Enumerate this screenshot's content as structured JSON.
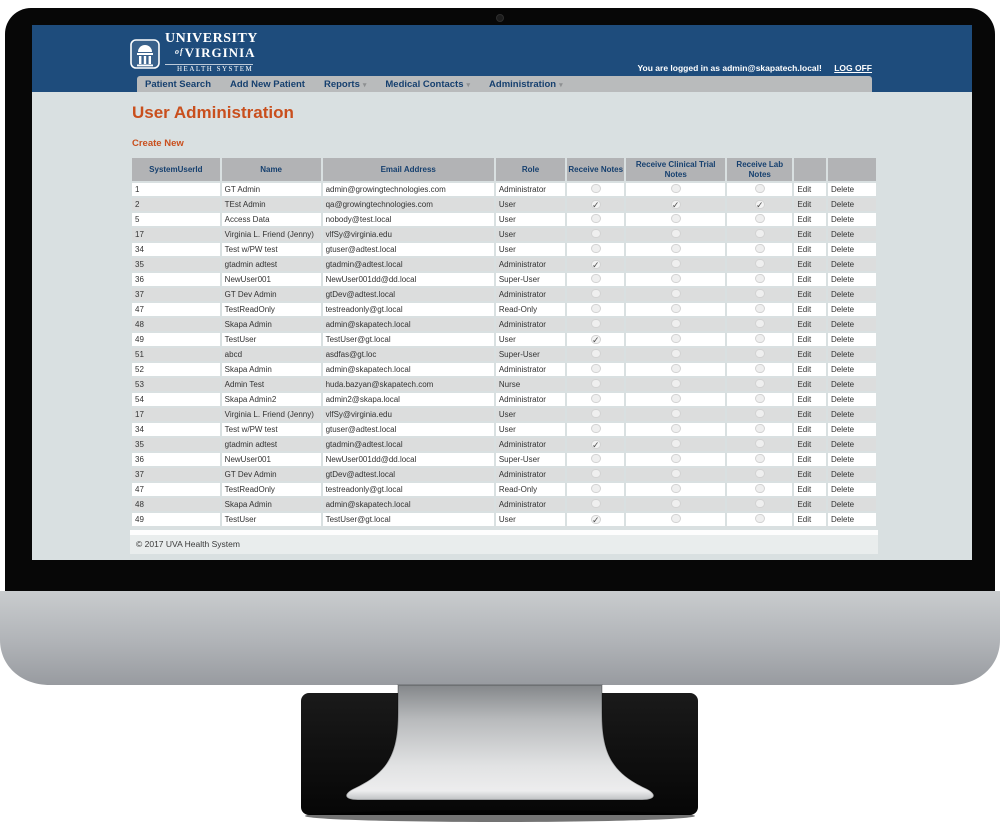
{
  "page": {
    "title": "User Administration",
    "create_new": "Create New",
    "copyright": "© 2017 UVA Health System"
  },
  "header": {
    "logo": {
      "line1": "University",
      "line2_of": "of",
      "line2": "Virginia",
      "line3": "Health System"
    },
    "login_text": "You are logged in as admin@skapatech.local!",
    "log_off": "LOG OFF",
    "nav": [
      {
        "label": "Patient Search",
        "has_dropdown": false
      },
      {
        "label": "Add New Patient",
        "has_dropdown": false
      },
      {
        "label": "Reports",
        "has_dropdown": true
      },
      {
        "label": "Medical Contacts",
        "has_dropdown": true
      },
      {
        "label": "Administration",
        "has_dropdown": true
      }
    ]
  },
  "colors": {
    "header_blue": "#1e4c7c",
    "accent_orange": "#c94f1d",
    "nav_gray": "#b9bbbc",
    "table_header_gray": "#b2b3b5"
  },
  "icons": {
    "logo_icon": "rotunda-building-icon",
    "nav_caret": "chevron-down-icon"
  },
  "table": {
    "headers": [
      "SystemUserId",
      "Name",
      "Email Address",
      "Role",
      "Receive Notes",
      "Receive Clinical Trial Notes",
      "Receive Lab Notes",
      "",
      ""
    ],
    "edit_label": "Edit",
    "delete_label": "Delete",
    "rows": [
      {
        "id": "1",
        "name": "GT Admin",
        "email": "admin@growingtechnologies.com",
        "role": "Administrator",
        "notes": false,
        "trial": false,
        "lab": false
      },
      {
        "id": "2",
        "name": "TEst Admin",
        "email": "qa@growingtechnologies.com",
        "role": "User",
        "notes": true,
        "trial": true,
        "lab": true
      },
      {
        "id": "5",
        "name": "Access Data",
        "email": "nobody@test.local",
        "role": "User",
        "notes": false,
        "trial": false,
        "lab": false
      },
      {
        "id": "17",
        "name": "Virginia L. Friend (Jenny)",
        "email": "vlfSy@virginia.edu",
        "role": "User",
        "notes": false,
        "trial": false,
        "lab": false
      },
      {
        "id": "34",
        "name": "Test w/PW test",
        "email": "gtuser@adtest.local",
        "role": "User",
        "notes": false,
        "trial": false,
        "lab": false
      },
      {
        "id": "35",
        "name": "gtadmin adtest",
        "email": "gtadmin@adtest.local",
        "role": "Administrator",
        "notes": true,
        "trial": false,
        "lab": false
      },
      {
        "id": "36",
        "name": "NewUser001",
        "email": "NewUser001dd@dd.local",
        "role": "Super-User",
        "notes": false,
        "trial": false,
        "lab": false
      },
      {
        "id": "37",
        "name": "GT Dev Admin",
        "email": "gtDev@adtest.local",
        "role": "Administrator",
        "notes": false,
        "trial": false,
        "lab": false
      },
      {
        "id": "47",
        "name": "TestReadOnly",
        "email": "testreadonly@gt.local",
        "role": "Read-Only",
        "notes": false,
        "trial": false,
        "lab": false
      },
      {
        "id": "48",
        "name": "Skapa Admin",
        "email": "admin@skapatech.local",
        "role": "Administrator",
        "notes": false,
        "trial": false,
        "lab": false
      },
      {
        "id": "49",
        "name": "TestUser",
        "email": "TestUser@gt.local",
        "role": "User",
        "notes": true,
        "trial": false,
        "lab": false
      },
      {
        "id": "51",
        "name": "abcd",
        "email": "asdfas@gt.loc",
        "role": "Super-User",
        "notes": false,
        "trial": false,
        "lab": false
      },
      {
        "id": "52",
        "name": "Skapa Admin",
        "email": "admin@skapatech.local",
        "role": "Administrator",
        "notes": false,
        "trial": false,
        "lab": false
      },
      {
        "id": "53",
        "name": "Admin Test",
        "email": "huda.bazyan@skapatech.com",
        "role": "Nurse",
        "notes": false,
        "trial": false,
        "lab": false
      },
      {
        "id": "54",
        "name": "Skapa Admin2",
        "email": "admin2@skapa.local",
        "role": "Administrator",
        "notes": false,
        "trial": false,
        "lab": false
      },
      {
        "id": "17",
        "name": "Virginia L. Friend (Jenny)",
        "email": "vlfSy@virginia.edu",
        "role": "User",
        "notes": false,
        "trial": false,
        "lab": false
      },
      {
        "id": "34",
        "name": "Test w/PW test",
        "email": "gtuser@adtest.local",
        "role": "User",
        "notes": false,
        "trial": false,
        "lab": false
      },
      {
        "id": "35",
        "name": "gtadmin adtest",
        "email": "gtadmin@adtest.local",
        "role": "Administrator",
        "notes": true,
        "trial": false,
        "lab": false
      },
      {
        "id": "36",
        "name": "NewUser001",
        "email": "NewUser001dd@dd.local",
        "role": "Super-User",
        "notes": false,
        "trial": false,
        "lab": false
      },
      {
        "id": "37",
        "name": "GT Dev Admin",
        "email": "gtDev@adtest.local",
        "role": "Administrator",
        "notes": false,
        "trial": false,
        "lab": false
      },
      {
        "id": "47",
        "name": "TestReadOnly",
        "email": "testreadonly@gt.local",
        "role": "Read-Only",
        "notes": false,
        "trial": false,
        "lab": false
      },
      {
        "id": "48",
        "name": "Skapa Admin",
        "email": "admin@skapatech.local",
        "role": "Administrator",
        "notes": false,
        "trial": false,
        "lab": false
      },
      {
        "id": "49",
        "name": "TestUser",
        "email": "TestUser@gt.local",
        "role": "User",
        "notes": true,
        "trial": false,
        "lab": false
      }
    ]
  }
}
